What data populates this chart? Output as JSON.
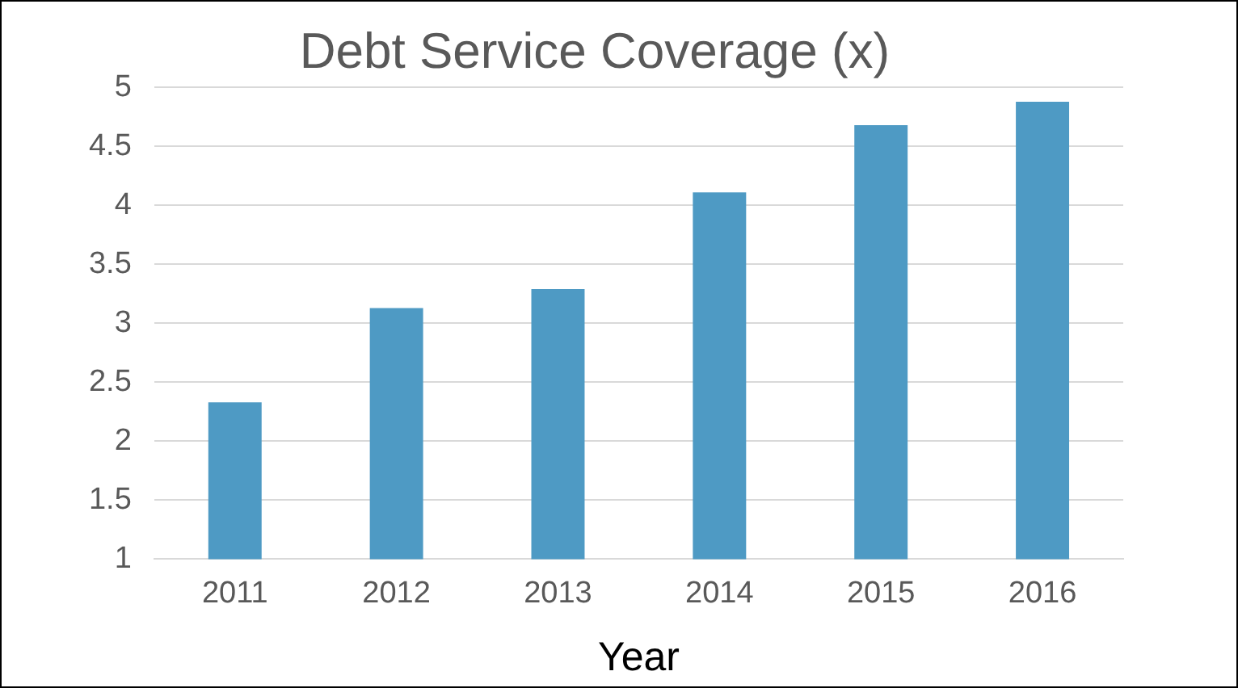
{
  "chart_data": {
    "type": "bar",
    "title": "Debt Service Coverage (x)",
    "xlabel": "Year",
    "categories": [
      "2011",
      "2012",
      "2013",
      "2014",
      "2015",
      "2016"
    ],
    "values": [
      2.33,
      3.13,
      3.29,
      4.11,
      4.68,
      4.88
    ],
    "color": "#4e9ac4",
    "ylim": [
      1,
      5
    ],
    "yticks": [
      1,
      1.5,
      2,
      2.5,
      3,
      3.5,
      4,
      4.5,
      5
    ],
    "grid": "y",
    "legend": false
  }
}
